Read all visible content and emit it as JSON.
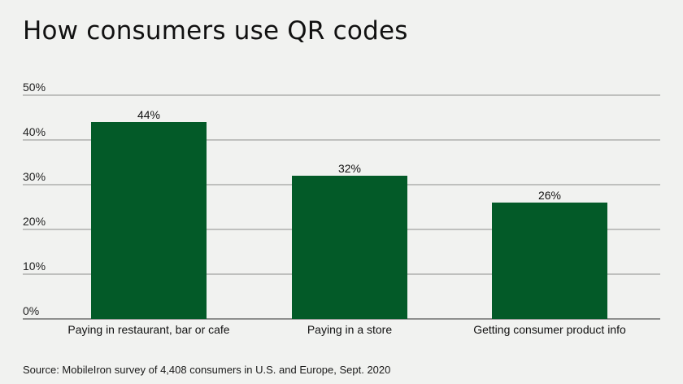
{
  "chart_data": {
    "type": "bar",
    "title": "How consumers use QR codes",
    "categories": [
      "Paying in restaurant, bar or cafe",
      "Paying in a store",
      "Getting consumer product info"
    ],
    "values": [
      44,
      32,
      26
    ],
    "data_labels": [
      "44%",
      "32%",
      "26%"
    ],
    "ylim": [
      0,
      50
    ],
    "yticks": [
      0,
      10,
      20,
      30,
      40,
      50
    ],
    "ytick_labels": [
      "0%",
      "10%",
      "20%",
      "30%",
      "40%",
      "50%"
    ],
    "xlabel": "",
    "ylabel": "",
    "grid": true,
    "legend": "none",
    "bar_color": "#035a28",
    "source": "Source: MobileIron survey of 4,408 consumers in U.S. and Europe, Sept. 2020"
  }
}
